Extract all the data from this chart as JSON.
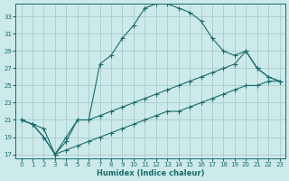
{
  "xlabel": "Humidex (Indice chaleur)",
  "bg_color": "#cceaea",
  "grid_color": "#aacccc",
  "line_color": "#1a6b6b",
  "xlim": [
    -0.5,
    23.5
  ],
  "ylim": [
    16.5,
    34.5
  ],
  "xticks": [
    0,
    1,
    2,
    3,
    4,
    5,
    6,
    7,
    8,
    9,
    10,
    11,
    12,
    13,
    14,
    15,
    16,
    17,
    18,
    19,
    20,
    21,
    22,
    23
  ],
  "yticks": [
    17,
    19,
    21,
    23,
    25,
    27,
    29,
    31,
    33
  ],
  "curve1_x": [
    0,
    1,
    2,
    3,
    4,
    5,
    6,
    7,
    8,
    9,
    10,
    11,
    12,
    13,
    14,
    15,
    16,
    17,
    18,
    19,
    20,
    21,
    22,
    23
  ],
  "curve1_y": [
    21,
    20.5,
    20,
    17,
    19,
    21,
    21,
    27.5,
    28.5,
    30.5,
    32,
    34,
    34.5,
    34.5,
    34,
    33.5,
    32.5,
    30.5,
    29,
    28.5,
    29,
    27,
    26,
    25.5
  ],
  "curve2_x": [
    0,
    1,
    2,
    3,
    4,
    5,
    6,
    7,
    8,
    9,
    10,
    11,
    12,
    13,
    14,
    15,
    16,
    17,
    18,
    19,
    20,
    21,
    22,
    23
  ],
  "curve2_y": [
    21,
    20.5,
    19,
    17,
    18.5,
    21,
    21,
    21.5,
    22,
    22.5,
    23,
    23.5,
    24,
    24.5,
    25,
    25.5,
    26,
    26.5,
    27,
    27.5,
    29,
    27,
    26,
    25.5
  ],
  "curve3_x": [
    0,
    1,
    2,
    3,
    4,
    5,
    6,
    7,
    8,
    9,
    10,
    11,
    12,
    13,
    14,
    15,
    16,
    17,
    18,
    19,
    20,
    21,
    22,
    23
  ],
  "curve3_y": [
    21,
    20.5,
    19,
    17,
    17.5,
    18,
    18.5,
    19,
    19.5,
    20,
    20.5,
    21,
    21.5,
    22,
    22,
    22.5,
    23,
    23.5,
    24,
    24.5,
    25,
    25,
    25.5,
    25.5
  ]
}
